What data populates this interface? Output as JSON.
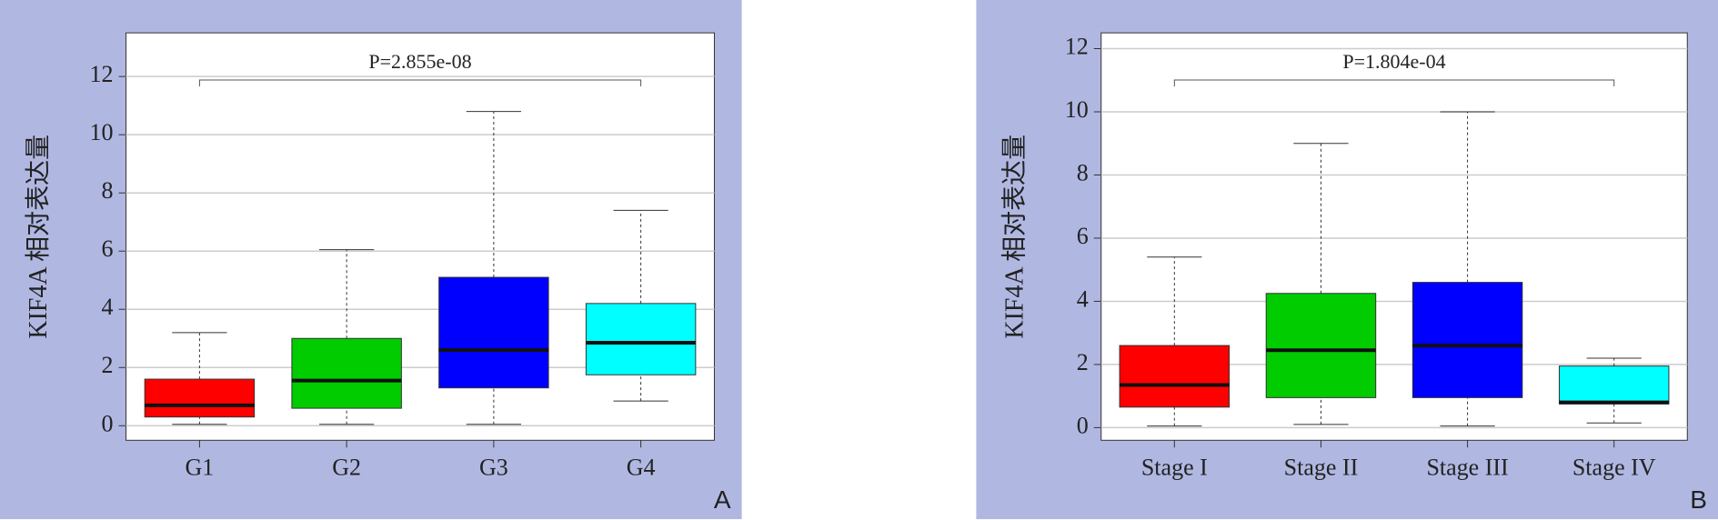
{
  "chart_data": [
    {
      "type": "box",
      "panel_label": "A",
      "ylabel": "KIF4A 相对表达量",
      "annotation": "P=2.855e-08",
      "categories": [
        "G1",
        "G2",
        "G3",
        "G4"
      ],
      "colors": [
        "#ff0000",
        "#00cc00",
        "#0000ff",
        "#00ffff"
      ],
      "min": [
        0.05,
        0.05,
        0.05,
        0.85
      ],
      "q1": [
        0.3,
        0.6,
        1.3,
        1.75
      ],
      "median": [
        0.7,
        1.55,
        2.6,
        2.85
      ],
      "q3": [
        1.6,
        3.0,
        5.1,
        4.2
      ],
      "max": [
        3.2,
        6.05,
        10.8,
        7.4
      ],
      "ylim": [
        -0.5,
        13.5
      ],
      "yticks": [
        0,
        2,
        4,
        6,
        8,
        10,
        12
      ],
      "grid": true
    },
    {
      "type": "box",
      "panel_label": "B",
      "ylabel": "KIF4A 相对表达量",
      "annotation": "P=1.804e-04",
      "categories": [
        "Stage I",
        "Stage II",
        "Stage III",
        "Stage IV"
      ],
      "colors": [
        "#ff0000",
        "#00cc00",
        "#0000ff",
        "#00ffff"
      ],
      "min": [
        0.05,
        0.1,
        0.05,
        0.15
      ],
      "q1": [
        0.65,
        0.95,
        0.95,
        0.75
      ],
      "median": [
        1.35,
        2.45,
        2.6,
        0.8
      ],
      "q3": [
        2.6,
        4.25,
        4.6,
        1.95
      ],
      "max": [
        5.4,
        9.0,
        10.0,
        2.2
      ],
      "ylim": [
        -0.4,
        12.5
      ],
      "yticks": [
        0,
        2,
        4,
        6,
        8,
        10,
        12
      ],
      "grid": true
    }
  ]
}
